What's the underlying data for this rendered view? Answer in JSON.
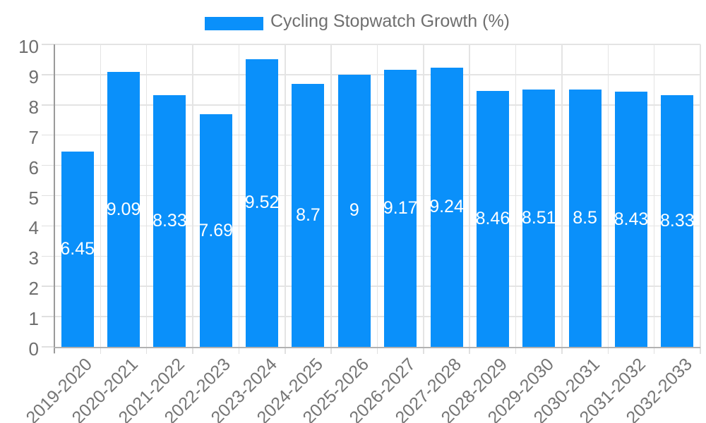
{
  "legend": {
    "label": "Cycling Stopwatch Growth (%)"
  },
  "chart_data": {
    "type": "bar",
    "title": "Cycling Stopwatch Growth (%)",
    "categories": [
      "2019-2020",
      "2020-2021",
      "2021-2022",
      "2022-2023",
      "2023-2024",
      "2024-2025",
      "2025-2026",
      "2026-2027",
      "2027-2028",
      "2028-2029",
      "2029-2030",
      "2030-2031",
      "2031-2032",
      "2032-2033"
    ],
    "values": [
      6.45,
      9.09,
      8.33,
      7.69,
      9.52,
      8.7,
      9,
      9.17,
      9.24,
      8.46,
      8.51,
      8.5,
      8.43,
      8.33
    ],
    "value_labels": [
      "6.45",
      "9.09",
      "8.33",
      "7.69",
      "9.52",
      "8.7",
      "9",
      "9.17",
      "9.24",
      "8.46",
      "8.51",
      "8.5",
      "8.43",
      "8.33"
    ],
    "xlabel": "",
    "ylabel": "",
    "ylim": [
      0,
      10
    ],
    "yticks": [
      0,
      1,
      2,
      3,
      4,
      5,
      6,
      7,
      8,
      9,
      10
    ],
    "grid": true,
    "legend_position": "top-center",
    "colors": {
      "bar": "#0a90fa",
      "value_label": "#ffffff",
      "axis_text": "#6e6e6e",
      "grid_line": "#e4e4e4",
      "axis_line": "#9a9a9a",
      "legend_text": "#6f6f6f"
    }
  }
}
